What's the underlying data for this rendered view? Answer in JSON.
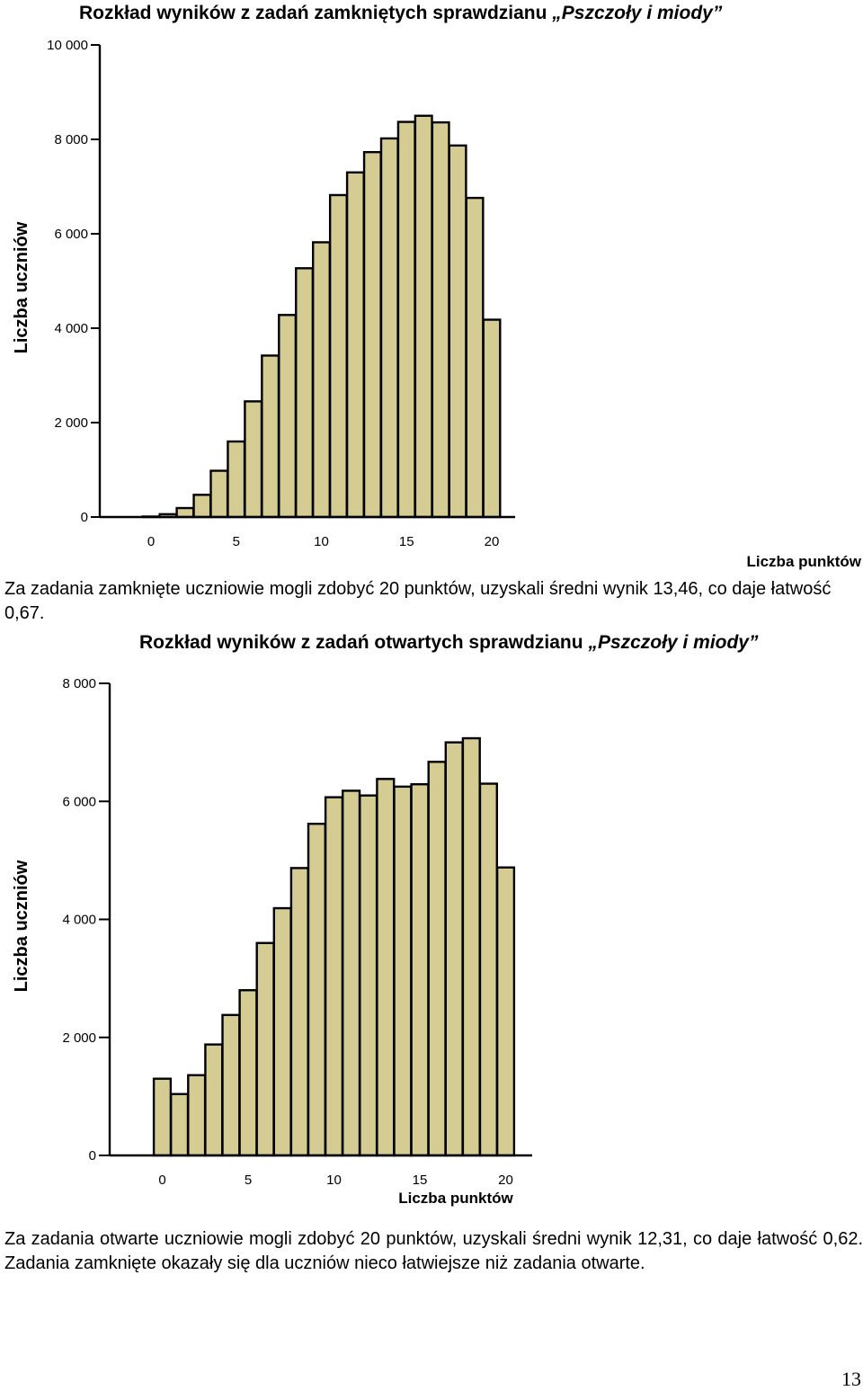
{
  "page_number": "13",
  "chart_data": [
    {
      "type": "bar",
      "title_prefix": "Rozkład wyników z zadań zamkniętych sprawdzianu ",
      "title_italic": "„Pszczoły i miody”",
      "xlabel": "Liczba punktów",
      "ylabel": "Liczba uczniów",
      "ylim": [
        0,
        10000
      ],
      "yticks": [
        0,
        2000,
        4000,
        6000,
        8000,
        10000
      ],
      "ytick_labels": [
        "0",
        "2 000",
        "4 000",
        "6 000",
        "8 000",
        "10 000"
      ],
      "xticks": [
        0,
        5,
        10,
        15,
        20
      ],
      "xtick_labels": [
        "0",
        "5",
        "10",
        "15",
        "20"
      ],
      "categories": [
        0,
        1,
        2,
        3,
        4,
        5,
        6,
        7,
        8,
        9,
        10,
        11,
        12,
        13,
        14,
        15,
        16,
        17,
        18,
        19,
        20
      ],
      "values": [
        10,
        60,
        190,
        470,
        980,
        1600,
        2450,
        3420,
        4280,
        5270,
        5820,
        6820,
        7300,
        7730,
        8020,
        8370,
        8500,
        8360,
        7870,
        6760,
        4180
      ]
    },
    {
      "type": "bar",
      "title_prefix": "Rozkład wyników z zadań otwartych sprawdzianu ",
      "title_italic": "„Pszczoły i miody”",
      "xlabel": "Liczba punktów",
      "ylabel": "Liczba uczniów",
      "ylim": [
        0,
        8000
      ],
      "yticks": [
        0,
        2000,
        4000,
        6000,
        8000
      ],
      "ytick_labels": [
        "0",
        "2 000",
        "4 000",
        "6 000",
        "8 000"
      ],
      "xticks": [
        0,
        5,
        10,
        15,
        20
      ],
      "xtick_labels": [
        "0",
        "5",
        "10",
        "15",
        "20"
      ],
      "categories": [
        0,
        1,
        2,
        3,
        4,
        5,
        6,
        7,
        8,
        9,
        10,
        11,
        12,
        13,
        14,
        15,
        16,
        17,
        18,
        19,
        20
      ],
      "values": [
        1300,
        1040,
        1360,
        1880,
        2380,
        2800,
        3600,
        4190,
        4870,
        5620,
        6070,
        6180,
        6100,
        6380,
        6250,
        6290,
        6670,
        7000,
        7070,
        6300,
        4880
      ]
    }
  ],
  "text": {
    "para1": "Za zadania zamknięte uczniowie mogli zdobyć 20 punktów, uzyskali średni wynik 13,46, co daje łatwość 0,67.",
    "para2": "Za zadania otwarte uczniowie mogli zdobyć 20 punktów, uzyskali średni wynik 12,31, co daje łatwość 0,62. Zadania zamknięte okazały się dla uczniów nieco łatwiejsze niż zadania otwarte."
  },
  "colors": {
    "bar_fill": "#d5cc93",
    "bar_stroke": "#000000"
  }
}
